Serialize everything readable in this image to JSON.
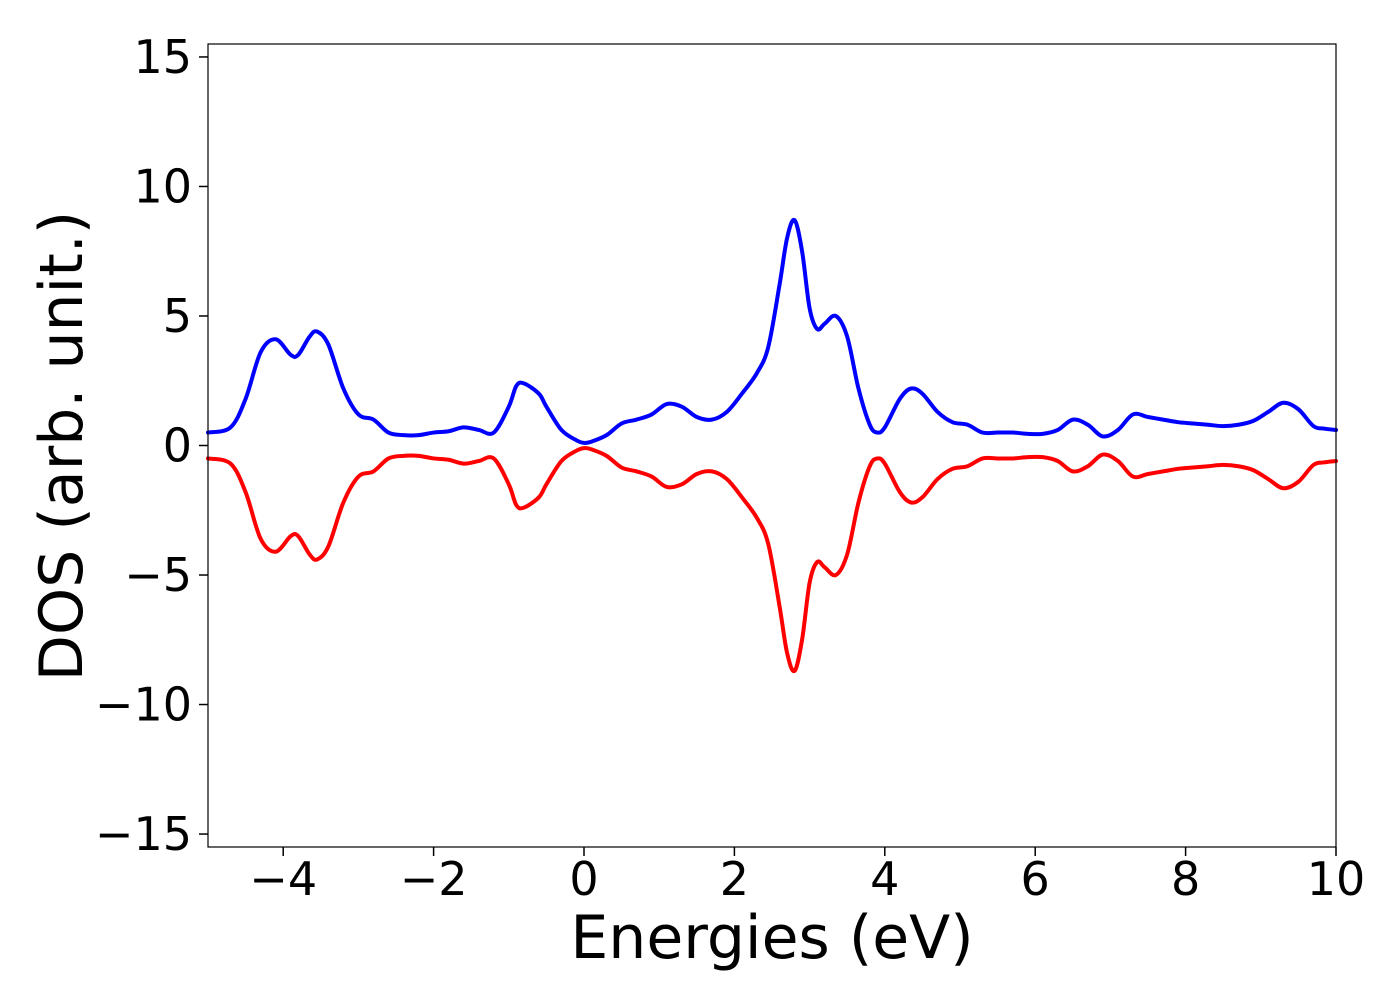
{
  "chart_data": {
    "type": "line",
    "xlabel": "Energies (eV)",
    "ylabel": "DOS (arb. unit.)",
    "xlim": [
      -5,
      10
    ],
    "ylim": [
      -15.5,
      15.5
    ],
    "xticks": [
      -4,
      -2,
      0,
      2,
      4,
      6,
      8,
      10
    ],
    "xtick_labels": [
      "−4",
      "−2",
      "0",
      "2",
      "4",
      "6",
      "8",
      "10"
    ],
    "yticks": [
      -15,
      -10,
      -5,
      0,
      5,
      10,
      15
    ],
    "ytick_labels": [
      "−15",
      "−10",
      "−5",
      "0",
      "5",
      "10",
      "15"
    ],
    "grid": false,
    "series": [
      {
        "color": "#0000ff",
        "x": [
          -5.0,
          -4.7,
          -4.5,
          -4.3,
          -4.1,
          -3.9,
          -3.8,
          -3.65,
          -3.55,
          -3.4,
          -3.2,
          -3.0,
          -2.8,
          -2.6,
          -2.4,
          -2.2,
          -2.0,
          -1.8,
          -1.6,
          -1.4,
          -1.2,
          -1.0,
          -0.9,
          -0.8,
          -0.6,
          -0.5,
          -0.3,
          -0.1,
          0.0,
          0.1,
          0.3,
          0.5,
          0.7,
          0.9,
          1.1,
          1.3,
          1.5,
          1.7,
          1.9,
          2.1,
          2.3,
          2.45,
          2.6,
          2.7,
          2.8,
          2.9,
          3.0,
          3.1,
          3.2,
          3.35,
          3.5,
          3.65,
          3.8,
          3.9,
          4.0,
          4.2,
          4.35,
          4.5,
          4.7,
          4.9,
          5.1,
          5.3,
          5.5,
          5.7,
          5.9,
          6.1,
          6.3,
          6.5,
          6.7,
          6.9,
          7.1,
          7.3,
          7.5,
          7.7,
          7.9,
          8.1,
          8.3,
          8.5,
          8.7,
          8.9,
          9.1,
          9.3,
          9.5,
          9.7,
          9.85,
          10.0
        ],
        "y": [
          0.5,
          0.7,
          1.8,
          3.6,
          4.1,
          3.5,
          3.5,
          4.2,
          4.4,
          3.9,
          2.2,
          1.2,
          1.0,
          0.5,
          0.4,
          0.4,
          0.5,
          0.55,
          0.7,
          0.6,
          0.5,
          1.5,
          2.3,
          2.4,
          2.0,
          1.5,
          0.6,
          0.2,
          0.1,
          0.15,
          0.4,
          0.85,
          1.0,
          1.2,
          1.6,
          1.5,
          1.1,
          1.0,
          1.3,
          2.0,
          2.8,
          3.8,
          6.2,
          8.0,
          8.7,
          7.5,
          5.3,
          4.5,
          4.7,
          5.0,
          4.2,
          2.2,
          0.8,
          0.5,
          0.7,
          1.8,
          2.2,
          2.0,
          1.3,
          0.9,
          0.8,
          0.5,
          0.5,
          0.5,
          0.45,
          0.45,
          0.6,
          1.0,
          0.8,
          0.35,
          0.6,
          1.2,
          1.1,
          1.0,
          0.9,
          0.85,
          0.8,
          0.75,
          0.8,
          0.95,
          1.3,
          1.65,
          1.4,
          0.75,
          0.65,
          0.6
        ]
      },
      {
        "color": "#ff0000",
        "x": [
          -5.0,
          -4.7,
          -4.5,
          -4.3,
          -4.1,
          -3.9,
          -3.8,
          -3.65,
          -3.55,
          -3.4,
          -3.2,
          -3.0,
          -2.8,
          -2.6,
          -2.4,
          -2.2,
          -2.0,
          -1.8,
          -1.6,
          -1.4,
          -1.2,
          -1.0,
          -0.9,
          -0.8,
          -0.6,
          -0.5,
          -0.3,
          -0.1,
          0.0,
          0.1,
          0.3,
          0.5,
          0.7,
          0.9,
          1.1,
          1.3,
          1.5,
          1.7,
          1.9,
          2.1,
          2.3,
          2.45,
          2.6,
          2.7,
          2.8,
          2.9,
          3.0,
          3.1,
          3.2,
          3.35,
          3.5,
          3.65,
          3.8,
          3.9,
          4.0,
          4.2,
          4.35,
          4.5,
          4.7,
          4.9,
          5.1,
          5.3,
          5.5,
          5.7,
          5.9,
          6.1,
          6.3,
          6.5,
          6.7,
          6.9,
          7.1,
          7.3,
          7.5,
          7.7,
          7.9,
          8.1,
          8.3,
          8.5,
          8.7,
          8.9,
          9.1,
          9.3,
          9.5,
          9.7,
          9.85,
          10.0
        ],
        "y": [
          -0.5,
          -0.7,
          -1.8,
          -3.6,
          -4.1,
          -3.5,
          -3.5,
          -4.2,
          -4.4,
          -3.9,
          -2.2,
          -1.2,
          -1.0,
          -0.5,
          -0.4,
          -0.4,
          -0.5,
          -0.55,
          -0.7,
          -0.6,
          -0.5,
          -1.5,
          -2.3,
          -2.4,
          -2.0,
          -1.5,
          -0.6,
          -0.2,
          -0.1,
          -0.15,
          -0.4,
          -0.85,
          -1.0,
          -1.2,
          -1.6,
          -1.5,
          -1.1,
          -1.0,
          -1.3,
          -2.0,
          -2.8,
          -3.8,
          -6.2,
          -8.0,
          -8.7,
          -7.5,
          -5.3,
          -4.5,
          -4.7,
          -5.0,
          -4.2,
          -2.2,
          -0.8,
          -0.5,
          -0.7,
          -1.8,
          -2.2,
          -2.0,
          -1.3,
          -0.9,
          -0.8,
          -0.5,
          -0.5,
          -0.5,
          -0.45,
          -0.45,
          -0.6,
          -1.0,
          -0.8,
          -0.35,
          -0.6,
          -1.2,
          -1.1,
          -1.0,
          -0.9,
          -0.85,
          -0.8,
          -0.75,
          -0.8,
          -0.95,
          -1.3,
          -1.65,
          -1.4,
          -0.75,
          -0.65,
          -0.6
        ]
      }
    ]
  }
}
